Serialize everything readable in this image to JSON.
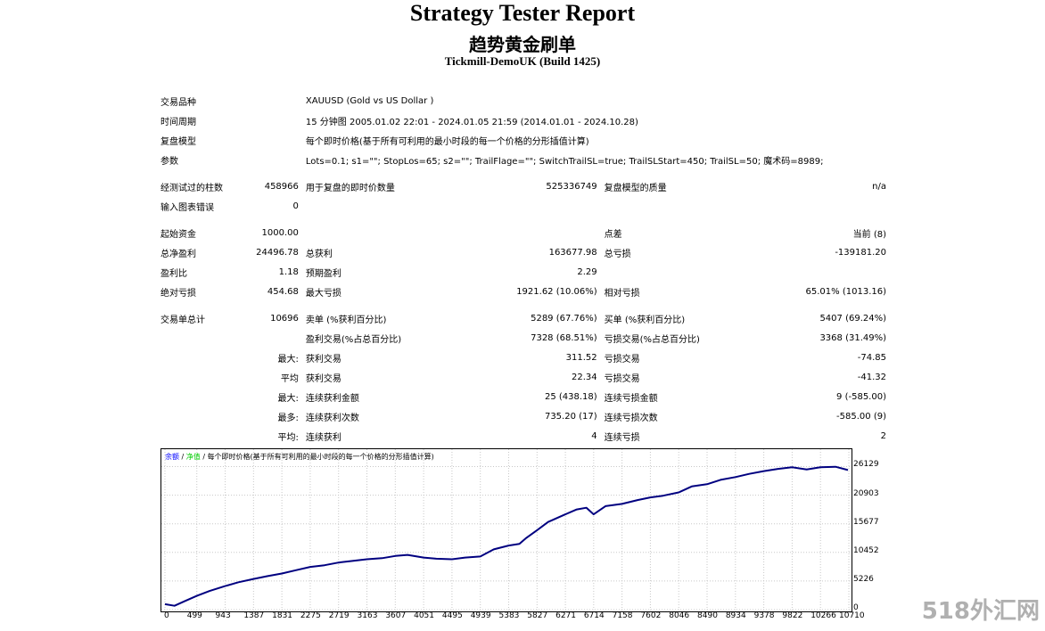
{
  "header": {
    "title": "Strategy Tester Report",
    "ea_name": "趋势黄金刷单",
    "server": "Tickmill-DemoUK (Build 1425)"
  },
  "settings": {
    "symbol_label": "交易品种",
    "symbol_value": "XAUUSD (Gold vs US Dollar )",
    "period_label": "时间周期",
    "period_value": "15 分钟图 2005.01.02 22:01 - 2024.01.05 21:59 (2014.01.01 - 2024.10.28)",
    "model_label": "复盘模型",
    "model_value": "每个即时价格(基于所有可利用的最小时段的每一个价格的分形插值计算)",
    "params_label": "参数",
    "params_value": "Lots=0.1; s1=\"\"; StopLos=65; s2=\"\"; TrailFlage=\"\"; SwitchTrailSL=true; TrailSLStart=450; TrailSL=50; 魔术码=8989;"
  },
  "quality": {
    "bars_label": "经测试过的柱数",
    "bars_value": "458966",
    "ticks_label": "用于复盘的即时价数量",
    "ticks_value": "525336749",
    "model_quality_label": "复盘模型的质量",
    "model_quality_value": "n/a",
    "errors_label": "输入图表错误",
    "errors_value": "0"
  },
  "results": {
    "deposit_label": "起始资金",
    "deposit_value": "1000.00",
    "spread_label": "点差",
    "spread_value": "当前 (8)",
    "net_profit_label": "总净盈利",
    "net_profit_value": "24496.78",
    "gross_profit_label": "总获利",
    "gross_profit_value": "163677.98",
    "gross_loss_label": "总亏损",
    "gross_loss_value": "-139181.20",
    "profit_factor_label": "盈利比",
    "profit_factor_value": "1.18",
    "expected_payoff_label": "预期盈利",
    "expected_payoff_value": "2.29",
    "abs_drawdown_label": "绝对亏损",
    "abs_drawdown_value": "454.68",
    "max_drawdown_label": "最大亏损",
    "max_drawdown_value": "1921.62 (10.06%)",
    "rel_drawdown_label": "相对亏损",
    "rel_drawdown_value": "65.01% (1013.16)"
  },
  "trades": {
    "total_label": "交易单总计",
    "total_value": "10696",
    "short_label": "卖单 (%获利百分比)",
    "short_value": "5289 (67.76%)",
    "long_label": "买单 (%获利百分比)",
    "long_value": "5407 (69.24%)",
    "win_label": "盈利交易(%占总百分比)",
    "win_value": "7328 (68.51%)",
    "loss_label": "亏损交易(%占总百分比)",
    "loss_value": "3368 (31.49%)",
    "largest_prefix": "最大:",
    "largest_win_label": "获利交易",
    "largest_win_value": "311.52",
    "largest_loss_label": "亏损交易",
    "largest_loss_value": "-74.85",
    "average_prefix": "平均",
    "average_win_label": "获利交易",
    "average_win_value": "22.34",
    "average_loss_label": "亏损交易",
    "average_loss_value": "-41.32",
    "max_prefix": "最大:",
    "max_cons_win_amount_label": "连续获利金额",
    "max_cons_win_amount_value": "25 (438.18)",
    "max_cons_loss_amount_label": "连续亏损金额",
    "max_cons_loss_amount_value": "9 (-585.00)",
    "most_prefix": "最多:",
    "most_cons_win_count_label": "连续获利次数",
    "most_cons_win_count_value": "735.20 (17)",
    "most_cons_loss_count_label": "连续亏损次数",
    "most_cons_loss_count_value": "-585.00 (9)",
    "avg_prefix": "平均:",
    "avg_cons_win_label": "连续获利",
    "avg_cons_win_value": "4",
    "avg_cons_loss_label": "连续亏损",
    "avg_cons_loss_value": "2"
  },
  "chart_legend": {
    "balance": "余额",
    "sep1": " / ",
    "equity": "净值",
    "sep2": " / ",
    "model": "每个即时价格(基于所有可利用的最小时段的每一个价格的分形插值计算)"
  },
  "watermark": "518外汇网",
  "chart_data": {
    "type": "line",
    "title": "",
    "xlabel": "",
    "ylabel": "",
    "x_ticks": [
      0,
      499,
      943,
      1387,
      1831,
      2275,
      2719,
      3163,
      3607,
      4051,
      4495,
      4939,
      5383,
      5827,
      6271,
      6714,
      7158,
      7602,
      8046,
      8490,
      8934,
      9378,
      9822,
      10266,
      10710
    ],
    "y_ticks": [
      0,
      5226,
      10452,
      15677,
      20903,
      26129
    ],
    "xlim": [
      0,
      10696
    ],
    "ylim": [
      0,
      28000
    ],
    "grid": true,
    "series": [
      {
        "name": "余额",
        "color": "#000080",
        "x": [
          0,
          150,
          300,
          499,
          700,
          943,
          1150,
          1387,
          1600,
          1831,
          2050,
          2275,
          2500,
          2719,
          2950,
          3163,
          3400,
          3607,
          3800,
          4051,
          4250,
          4495,
          4700,
          4939,
          5150,
          5383,
          5550,
          5650,
          5827,
          6000,
          6271,
          6450,
          6600,
          6714,
          6900,
          7158,
          7400,
          7602,
          7800,
          8046,
          8250,
          8490,
          8700,
          8934,
          9150,
          9378,
          9600,
          9822,
          10050,
          10266,
          10500,
          10696
        ],
        "values": [
          1000,
          700,
          1500,
          2500,
          3400,
          4300,
          5000,
          5600,
          6100,
          6600,
          7200,
          7800,
          8100,
          8600,
          8900,
          9200,
          9400,
          9800,
          10000,
          9500,
          9300,
          9200,
          9500,
          9700,
          11000,
          11700,
          12000,
          13000,
          14500,
          16000,
          17400,
          18300,
          18600,
          17400,
          18900,
          19300,
          20000,
          20500,
          20800,
          21400,
          22500,
          22900,
          23700,
          24200,
          24800,
          25300,
          25700,
          26000,
          25600,
          26000,
          26100,
          25500
        ]
      }
    ]
  }
}
